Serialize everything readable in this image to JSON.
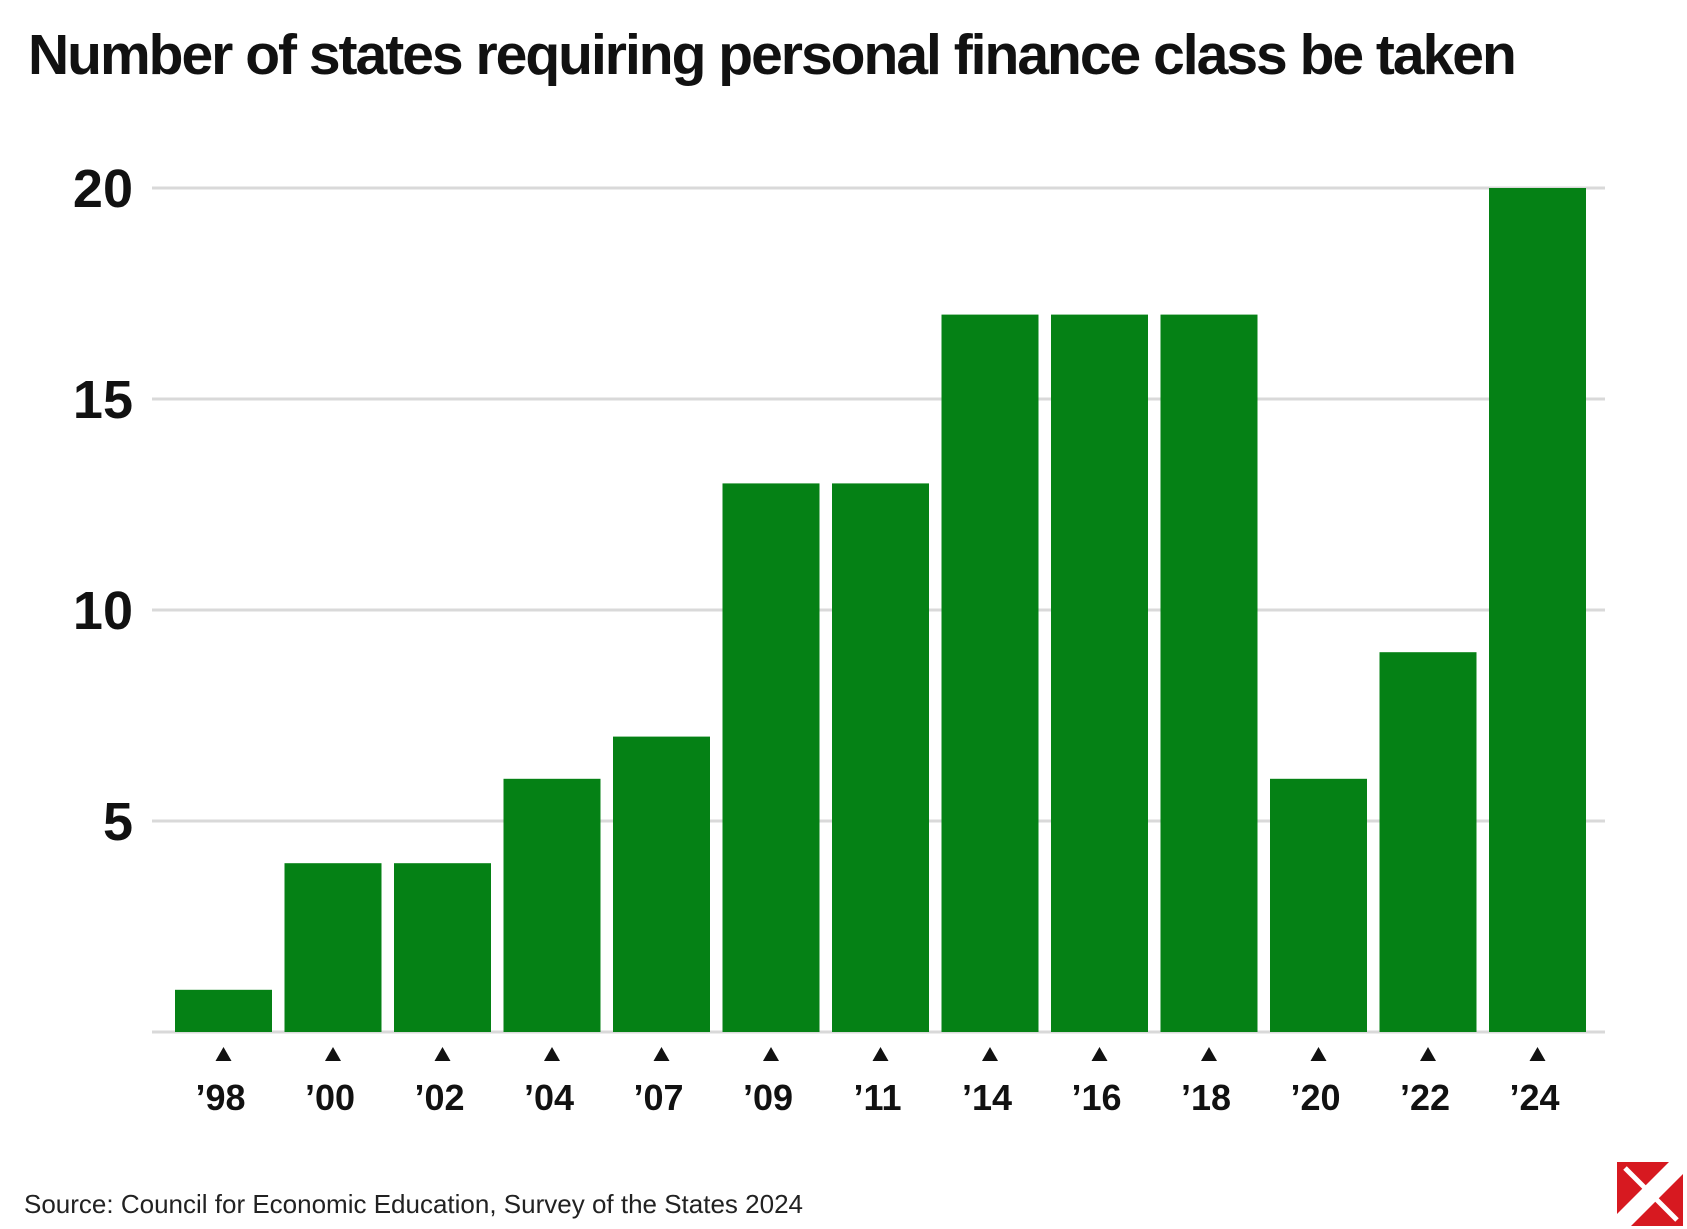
{
  "chart_data": {
    "type": "bar",
    "title": "Number of states requiring personal finance class be taken",
    "categories": [
      "’98",
      "’00",
      "’02",
      "’04",
      "’07",
      "’09",
      "’11",
      "’14",
      "’16",
      "’18",
      "’20",
      "’22",
      "’24"
    ],
    "values": [
      1,
      4,
      4,
      6,
      7,
      13,
      13,
      17,
      17,
      17,
      6,
      9,
      20
    ],
    "yticks": [
      "5",
      "10",
      "15",
      "20"
    ],
    "ylim": [
      0,
      20
    ],
    "xlabel": "",
    "ylabel": "",
    "grid": true,
    "legend": "none",
    "colors": {
      "bar": "#058115",
      "grid": "#d9d9d9",
      "text": "#111111",
      "marker": "#111111"
    },
    "source": "Source: Council for Economic Education, Survey of the States 2024"
  },
  "logo": {
    "icon": "publisher-logo-icon",
    "color": "#d71920"
  }
}
